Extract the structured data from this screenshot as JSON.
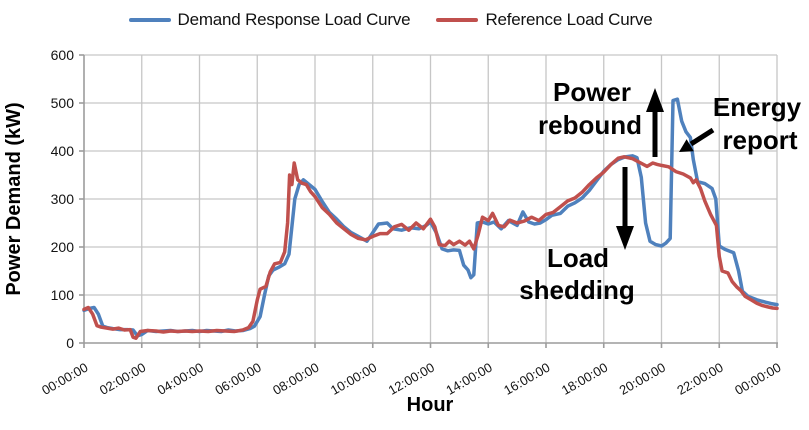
{
  "legend": {
    "items": [
      {
        "label": "Demand Response Load Curve",
        "color": "#4F81BD"
      },
      {
        "label": "Reference Load Curve",
        "color": "#C0504D"
      }
    ]
  },
  "annotations": {
    "power_rebound": {
      "line1": "Power",
      "line2": "rebound",
      "arrow": "up"
    },
    "load_shedding": {
      "line1": "Load",
      "line2": "shedding",
      "arrow": "down"
    },
    "energy_report": {
      "line1": "Energy",
      "line2": "report",
      "arrow": "down-left"
    }
  },
  "chart_data": {
    "type": "line",
    "title": "",
    "xlabel": "Hour",
    "ylabel": "Power Demand (kW)",
    "xlim": [
      0,
      24
    ],
    "ylim": [
      0,
      600
    ],
    "grid": true,
    "legend_position": "top",
    "x_unit": "hours",
    "y_unit": "kW",
    "colors": {
      "grid": "#C6C6C6",
      "axis": "#9C9C9C",
      "demand_response": "#4F81BD",
      "reference": "#C0504D"
    },
    "x_tick_hours": [
      0,
      2,
      4,
      6,
      8,
      10,
      12,
      14,
      16,
      18,
      20,
      22,
      24
    ],
    "x_tick_labels": [
      "00:00:00",
      "02:00:00",
      "04:00:00",
      "06:00:00",
      "08:00:00",
      "10:00:00",
      "12:00:00",
      "14:00:00",
      "16:00:00",
      "18:00:00",
      "20:00:00",
      "22:00:00",
      "00:00:00"
    ],
    "y_ticks": [
      0,
      100,
      200,
      300,
      400,
      500,
      600
    ],
    "series": [
      {
        "name": "Demand Response Load Curve",
        "color": "#4F81BD",
        "points": [
          [
            0,
            68
          ],
          [
            0.2,
            72
          ],
          [
            0.35,
            74
          ],
          [
            0.5,
            60
          ],
          [
            0.65,
            35
          ],
          [
            0.8,
            32
          ],
          [
            1,
            30
          ],
          [
            1.25,
            28
          ],
          [
            1.5,
            28
          ],
          [
            1.7,
            27
          ],
          [
            1.85,
            15
          ],
          [
            2,
            18
          ],
          [
            2.2,
            26
          ],
          [
            2.5,
            24
          ],
          [
            2.75,
            25
          ],
          [
            3,
            26
          ],
          [
            3.25,
            24
          ],
          [
            3.5,
            25
          ],
          [
            3.75,
            26
          ],
          [
            4,
            24
          ],
          [
            4.25,
            26
          ],
          [
            4.5,
            25
          ],
          [
            4.75,
            24
          ],
          [
            5,
            27
          ],
          [
            5.25,
            25
          ],
          [
            5.5,
            26
          ],
          [
            5.75,
            30
          ],
          [
            5.9,
            35
          ],
          [
            6.1,
            55
          ],
          [
            6.25,
            100
          ],
          [
            6.4,
            140
          ],
          [
            6.55,
            152
          ],
          [
            6.75,
            158
          ],
          [
            6.95,
            165
          ],
          [
            7.1,
            185
          ],
          [
            7.3,
            300
          ],
          [
            7.45,
            330
          ],
          [
            7.6,
            340
          ],
          [
            7.8,
            330
          ],
          [
            8,
            320
          ],
          [
            8.25,
            295
          ],
          [
            8.5,
            272
          ],
          [
            8.75,
            258
          ],
          [
            9,
            242
          ],
          [
            9.25,
            230
          ],
          [
            9.5,
            222
          ],
          [
            9.8,
            212
          ],
          [
            10,
            230
          ],
          [
            10.2,
            248
          ],
          [
            10.5,
            250
          ],
          [
            10.7,
            238
          ],
          [
            11,
            235
          ],
          [
            11.3,
            240
          ],
          [
            11.6,
            238
          ],
          [
            11.85,
            245
          ],
          [
            12,
            252
          ],
          [
            12.2,
            230
          ],
          [
            12.4,
            196
          ],
          [
            12.6,
            192
          ],
          [
            12.8,
            194
          ],
          [
            13,
            193
          ],
          [
            13.15,
            162
          ],
          [
            13.3,
            152
          ],
          [
            13.4,
            136
          ],
          [
            13.5,
            142
          ],
          [
            13.62,
            250
          ],
          [
            13.8,
            252
          ],
          [
            14,
            248
          ],
          [
            14.2,
            252
          ],
          [
            14.45,
            238
          ],
          [
            14.7,
            255
          ],
          [
            15,
            245
          ],
          [
            15.2,
            273
          ],
          [
            15.4,
            252
          ],
          [
            15.6,
            248
          ],
          [
            15.8,
            250
          ],
          [
            16,
            257
          ],
          [
            16.2,
            266
          ],
          [
            16.5,
            270
          ],
          [
            16.75,
            285
          ],
          [
            17,
            292
          ],
          [
            17.25,
            302
          ],
          [
            17.5,
            318
          ],
          [
            17.75,
            338
          ],
          [
            18,
            358
          ],
          [
            18.25,
            372
          ],
          [
            18.5,
            382
          ],
          [
            18.75,
            388
          ],
          [
            19,
            390
          ],
          [
            19.15,
            386
          ],
          [
            19.3,
            345
          ],
          [
            19.45,
            250
          ],
          [
            19.6,
            212
          ],
          [
            19.8,
            205
          ],
          [
            20,
            202
          ],
          [
            20.15,
            208
          ],
          [
            20.3,
            218
          ],
          [
            20.4,
            505
          ],
          [
            20.55,
            508
          ],
          [
            20.7,
            462
          ],
          [
            20.85,
            440
          ],
          [
            21,
            428
          ],
          [
            21.1,
            382
          ],
          [
            21.25,
            336
          ],
          [
            21.5,
            332
          ],
          [
            21.75,
            322
          ],
          [
            21.88,
            300
          ],
          [
            22,
            202
          ],
          [
            22.2,
            195
          ],
          [
            22.5,
            188
          ],
          [
            22.67,
            150
          ],
          [
            22.8,
            108
          ],
          [
            23,
            97
          ],
          [
            23.3,
            90
          ],
          [
            23.6,
            85
          ],
          [
            23.8,
            82
          ],
          [
            24,
            80
          ]
        ]
      },
      {
        "name": "Reference Load Curve",
        "color": "#C0504D",
        "points": [
          [
            0,
            70
          ],
          [
            0.15,
            74
          ],
          [
            0.3,
            60
          ],
          [
            0.45,
            36
          ],
          [
            0.6,
            33
          ],
          [
            0.8,
            31
          ],
          [
            1,
            29
          ],
          [
            1.2,
            31
          ],
          [
            1.4,
            27
          ],
          [
            1.6,
            28
          ],
          [
            1.7,
            12
          ],
          [
            1.8,
            10
          ],
          [
            1.95,
            24
          ],
          [
            2.2,
            26
          ],
          [
            2.5,
            25
          ],
          [
            2.75,
            23
          ],
          [
            3,
            25
          ],
          [
            3.25,
            24
          ],
          [
            3.5,
            25
          ],
          [
            3.75,
            24
          ],
          [
            4,
            25
          ],
          [
            4.3,
            24
          ],
          [
            4.6,
            26
          ],
          [
            4.9,
            25
          ],
          [
            5.2,
            24
          ],
          [
            5.5,
            27
          ],
          [
            5.7,
            32
          ],
          [
            5.85,
            45
          ],
          [
            6,
            90
          ],
          [
            6.1,
            112
          ],
          [
            6.3,
            118
          ],
          [
            6.45,
            148
          ],
          [
            6.6,
            165
          ],
          [
            6.8,
            168
          ],
          [
            6.95,
            190
          ],
          [
            7.05,
            250
          ],
          [
            7.12,
            350
          ],
          [
            7.2,
            330
          ],
          [
            7.28,
            375
          ],
          [
            7.4,
            340
          ],
          [
            7.55,
            333
          ],
          [
            7.7,
            330
          ],
          [
            7.85,
            315
          ],
          [
            8,
            305
          ],
          [
            8.25,
            282
          ],
          [
            8.5,
            268
          ],
          [
            8.75,
            250
          ],
          [
            9,
            238
          ],
          [
            9.25,
            226
          ],
          [
            9.5,
            218
          ],
          [
            9.75,
            215
          ],
          [
            10,
            222
          ],
          [
            10.25,
            228
          ],
          [
            10.5,
            228
          ],
          [
            10.75,
            242
          ],
          [
            11,
            247
          ],
          [
            11.25,
            235
          ],
          [
            11.5,
            250
          ],
          [
            11.75,
            238
          ],
          [
            12,
            258
          ],
          [
            12.15,
            242
          ],
          [
            12.3,
            205
          ],
          [
            12.5,
            203
          ],
          [
            12.65,
            212
          ],
          [
            12.8,
            205
          ],
          [
            13,
            212
          ],
          [
            13.2,
            204
          ],
          [
            13.35,
            212
          ],
          [
            13.5,
            196
          ],
          [
            13.65,
            225
          ],
          [
            13.8,
            262
          ],
          [
            14,
            255
          ],
          [
            14.15,
            270
          ],
          [
            14.35,
            245
          ],
          [
            14.55,
            242
          ],
          [
            14.75,
            256
          ],
          [
            15,
            250
          ],
          [
            15.25,
            254
          ],
          [
            15.5,
            262
          ],
          [
            15.75,
            255
          ],
          [
            16,
            268
          ],
          [
            16.25,
            272
          ],
          [
            16.5,
            284
          ],
          [
            16.75,
            296
          ],
          [
            17,
            302
          ],
          [
            17.25,
            314
          ],
          [
            17.5,
            330
          ],
          [
            17.75,
            344
          ],
          [
            18,
            356
          ],
          [
            18.25,
            372
          ],
          [
            18.5,
            385
          ],
          [
            18.7,
            388
          ],
          [
            19,
            384
          ],
          [
            19.25,
            376
          ],
          [
            19.5,
            368
          ],
          [
            19.7,
            375
          ],
          [
            19.85,
            372
          ],
          [
            20,
            370
          ],
          [
            20.25,
            367
          ],
          [
            20.5,
            357
          ],
          [
            20.75,
            352
          ],
          [
            21,
            344
          ],
          [
            21.1,
            334
          ],
          [
            21.2,
            340
          ],
          [
            21.35,
            322
          ],
          [
            21.5,
            296
          ],
          [
            21.7,
            268
          ],
          [
            21.9,
            245
          ],
          [
            22,
            180
          ],
          [
            22.1,
            150
          ],
          [
            22.3,
            146
          ],
          [
            22.45,
            128
          ],
          [
            22.6,
            117
          ],
          [
            22.75,
            109
          ],
          [
            22.9,
            97
          ],
          [
            23.1,
            90
          ],
          [
            23.3,
            83
          ],
          [
            23.5,
            78
          ],
          [
            23.7,
            75
          ],
          [
            23.85,
            73
          ],
          [
            24,
            72
          ]
        ]
      }
    ],
    "annotations": [
      {
        "text": "Power rebound",
        "arrow": "up",
        "points_at": "demand response rebound spike ~20:20"
      },
      {
        "text": "Load shedding",
        "arrow": "down",
        "points_at": "demand response drop ~19:30-20:15"
      },
      {
        "text": "Energy report",
        "arrow": "down-left",
        "points_at": "demand response curve after spike ~21:00"
      }
    ]
  }
}
